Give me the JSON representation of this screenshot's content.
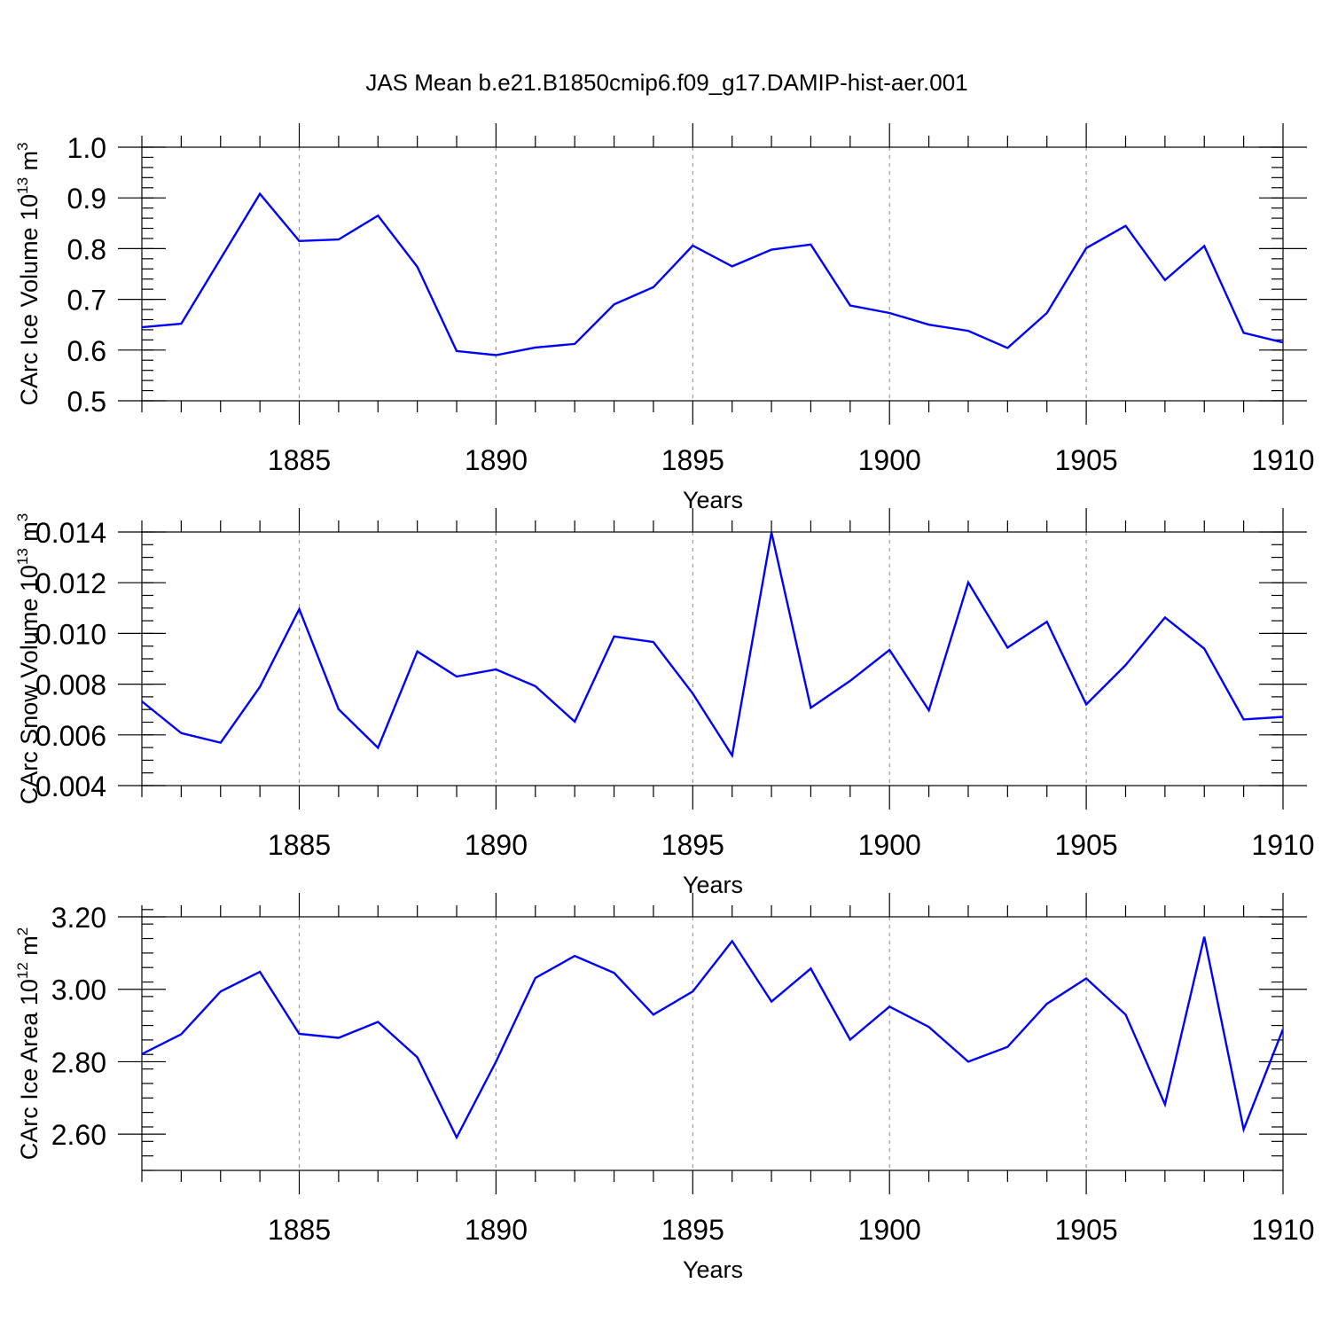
{
  "chart_data": {
    "title": "JAS Mean b.e21.B1850cmip6.f09_g17.DAMIP-hist-aer.001",
    "type": "line",
    "panels": [
      {
        "type": "line",
        "ylabel": "CArc Ice Volume 10",
        "ylabel_exp": "13",
        "ylabel_unit": " m",
        "ylabel_unit_exp": "3",
        "xlabel": "Years",
        "xlim": [
          1881,
          1910
        ],
        "ylim": [
          0.5,
          1.0
        ],
        "yticks": [
          0.5,
          0.6,
          0.7,
          0.8,
          0.9,
          1.0
        ],
        "ytick_labels": [
          "0.5",
          "0.6",
          "0.7",
          "0.8",
          "0.9",
          "1.0"
        ],
        "ymin_step": 0.02,
        "xticks": [
          1885,
          1890,
          1895,
          1900,
          1905,
          1910
        ],
        "xtick_labels": [
          "1885",
          "1890",
          "1895",
          "1900",
          "1905",
          "1910"
        ],
        "grid_x": [
          1885,
          1890,
          1895,
          1900,
          1905
        ],
        "color": "#0000ff",
        "x": [
          1881,
          1882,
          1883,
          1884,
          1885,
          1886,
          1887,
          1888,
          1889,
          1890,
          1891,
          1892,
          1893,
          1894,
          1895,
          1896,
          1897,
          1898,
          1899,
          1900,
          1901,
          1902,
          1903,
          1904,
          1905,
          1906,
          1907,
          1908,
          1909,
          1910
        ],
        "values": [
          0.645,
          0.652,
          0.78,
          0.908,
          0.815,
          0.818,
          0.865,
          0.764,
          0.598,
          0.59,
          0.605,
          0.612,
          0.69,
          0.724,
          0.806,
          0.765,
          0.798,
          0.808,
          0.688,
          0.673,
          0.65,
          0.638,
          0.604,
          0.673,
          0.801,
          0.845,
          0.738,
          0.805,
          0.634,
          0.615
        ]
      },
      {
        "type": "line",
        "ylabel": "CArc Snow Volume 10",
        "ylabel_exp": "13",
        "ylabel_unit": " m",
        "ylabel_unit_exp": "3",
        "xlabel": "Years",
        "xlim": [
          1881,
          1910
        ],
        "ylim": [
          0.004,
          0.014
        ],
        "yticks": [
          0.004,
          0.006,
          0.008,
          0.01,
          0.012,
          0.014
        ],
        "ytick_labels": [
          "0.004",
          "0.006",
          "0.008",
          "0.010",
          "0.012",
          "0.014"
        ],
        "ymin_step": 0.0005,
        "xticks": [
          1885,
          1890,
          1895,
          1900,
          1905,
          1910
        ],
        "xtick_labels": [
          "1885",
          "1890",
          "1895",
          "1900",
          "1905",
          "1910"
        ],
        "grid_x": [
          1885,
          1890,
          1895,
          1900,
          1905
        ],
        "color": "#0000ff",
        "x": [
          1881,
          1882,
          1883,
          1884,
          1885,
          1886,
          1887,
          1888,
          1889,
          1890,
          1891,
          1892,
          1893,
          1894,
          1895,
          1896,
          1897,
          1898,
          1899,
          1900,
          1901,
          1902,
          1903,
          1904,
          1905,
          1906,
          1907,
          1908,
          1909,
          1910
        ],
        "values": [
          0.00732,
          0.00607,
          0.00569,
          0.00789,
          0.01096,
          0.00701,
          0.00549,
          0.00929,
          0.0083,
          0.00858,
          0.00792,
          0.00652,
          0.00988,
          0.00966,
          0.00763,
          0.00519,
          0.01398,
          0.00707,
          0.00813,
          0.00935,
          0.00697,
          0.01201,
          0.00944,
          0.01046,
          0.0072,
          0.00875,
          0.01063,
          0.0094,
          0.00661,
          0.00671
        ]
      },
      {
        "type": "line",
        "ylabel": "CArc Ice Area 10",
        "ylabel_exp": "12",
        "ylabel_unit": " m",
        "ylabel_unit_exp": "2",
        "xlabel": "Years",
        "xlim": [
          1881,
          1910
        ],
        "ylim": [
          2.5,
          3.2
        ],
        "yticks": [
          2.6,
          2.8,
          3.0,
          3.2
        ],
        "ytick_labels": [
          "2.60",
          "2.80",
          "3.00",
          "3.20"
        ],
        "ymin_step": 0.04,
        "xticks": [
          1885,
          1890,
          1895,
          1900,
          1905,
          1910
        ],
        "xtick_labels": [
          "1885",
          "1890",
          "1895",
          "1900",
          "1905",
          "1910"
        ],
        "grid_x": [
          1885,
          1890,
          1895,
          1900,
          1905
        ],
        "color": "#0000ff",
        "x": [
          1881,
          1882,
          1883,
          1884,
          1885,
          1886,
          1887,
          1888,
          1889,
          1890,
          1891,
          1892,
          1893,
          1894,
          1895,
          1896,
          1897,
          1898,
          1899,
          1900,
          1901,
          1902,
          1903,
          1904,
          1905,
          1906,
          1907,
          1908,
          1909,
          1910
        ],
        "values": [
          2.821,
          2.876,
          2.994,
          3.048,
          2.877,
          2.866,
          2.91,
          2.812,
          2.591,
          2.8,
          3.031,
          3.092,
          3.045,
          2.93,
          2.994,
          3.133,
          2.966,
          3.057,
          2.861,
          2.952,
          2.896,
          2.8,
          2.841,
          2.96,
          3.03,
          2.93,
          2.682,
          3.145,
          2.613,
          2.89
        ]
      }
    ]
  }
}
